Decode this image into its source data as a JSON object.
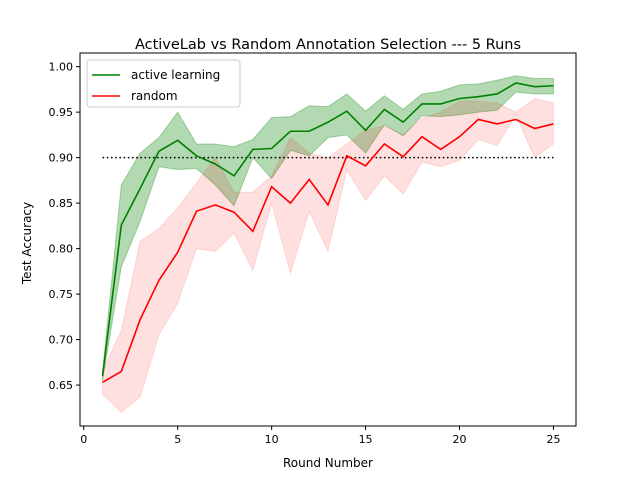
{
  "chart_data": {
    "type": "line",
    "title": "ActiveLab vs Random Annotation Selection --- 5 Runs",
    "xlabel": "Round Number",
    "ylabel": "Test Accuracy",
    "xlim": [
      -0.2,
      26.2
    ],
    "ylim": [
      0.605,
      1.015
    ],
    "xticks": [
      0,
      5,
      10,
      15,
      20,
      25
    ],
    "yticks": [
      0.65,
      0.7,
      0.75,
      0.8,
      0.85,
      0.9,
      0.95,
      1.0
    ],
    "grid": false,
    "legend": "upper-left",
    "x": [
      1,
      2,
      3,
      4,
      5,
      6,
      7,
      8,
      9,
      10,
      11,
      12,
      13,
      14,
      15,
      16,
      17,
      18,
      19,
      20,
      21,
      22,
      23,
      24,
      25
    ],
    "series": [
      {
        "name": "active learning",
        "color": "#008000",
        "values": [
          0.66,
          0.826,
          0.866,
          0.907,
          0.919,
          0.902,
          0.893,
          0.88,
          0.909,
          0.91,
          0.929,
          0.929,
          0.939,
          0.951,
          0.93,
          0.953,
          0.939,
          0.959,
          0.959,
          0.965,
          0.967,
          0.97,
          0.982,
          0.978,
          0.979
        ],
        "upper": [
          0.665,
          0.87,
          0.905,
          0.922,
          0.95,
          0.915,
          0.915,
          0.912,
          0.92,
          0.944,
          0.945,
          0.957,
          0.956,
          0.97,
          0.951,
          0.968,
          0.953,
          0.97,
          0.973,
          0.98,
          0.981,
          0.985,
          0.99,
          0.987,
          0.987
        ],
        "lower": [
          0.655,
          0.78,
          0.83,
          0.89,
          0.887,
          0.888,
          0.87,
          0.847,
          0.9,
          0.877,
          0.908,
          0.902,
          0.922,
          0.925,
          0.905,
          0.936,
          0.924,
          0.946,
          0.945,
          0.947,
          0.95,
          0.952,
          0.972,
          0.97,
          0.97
        ],
        "band_color": "#008000"
      },
      {
        "name": "random",
        "color": "#ff0000",
        "values": [
          0.653,
          0.665,
          0.722,
          0.765,
          0.796,
          0.841,
          0.848,
          0.84,
          0.819,
          0.868,
          0.85,
          0.876,
          0.848,
          0.902,
          0.891,
          0.915,
          0.901,
          0.923,
          0.909,
          0.923,
          0.942,
          0.937,
          0.942,
          0.932,
          0.937
        ],
        "upper": [
          0.665,
          0.71,
          0.808,
          0.822,
          0.845,
          0.872,
          0.9,
          0.862,
          0.862,
          0.88,
          0.922,
          0.905,
          0.9,
          0.915,
          0.93,
          0.935,
          0.925,
          0.943,
          0.95,
          0.962,
          0.962,
          0.96,
          0.95,
          0.965,
          0.96
        ],
        "lower": [
          0.64,
          0.62,
          0.637,
          0.705,
          0.74,
          0.8,
          0.797,
          0.817,
          0.776,
          0.85,
          0.773,
          0.841,
          0.797,
          0.887,
          0.853,
          0.88,
          0.86,
          0.895,
          0.89,
          0.897,
          0.92,
          0.913,
          0.947,
          0.9,
          0.915
        ],
        "band_color": "#ff0000"
      }
    ],
    "reference_line": {
      "y": 0.9,
      "x_range": [
        1,
        25
      ],
      "style": "dotted",
      "color": "#000000"
    }
  }
}
